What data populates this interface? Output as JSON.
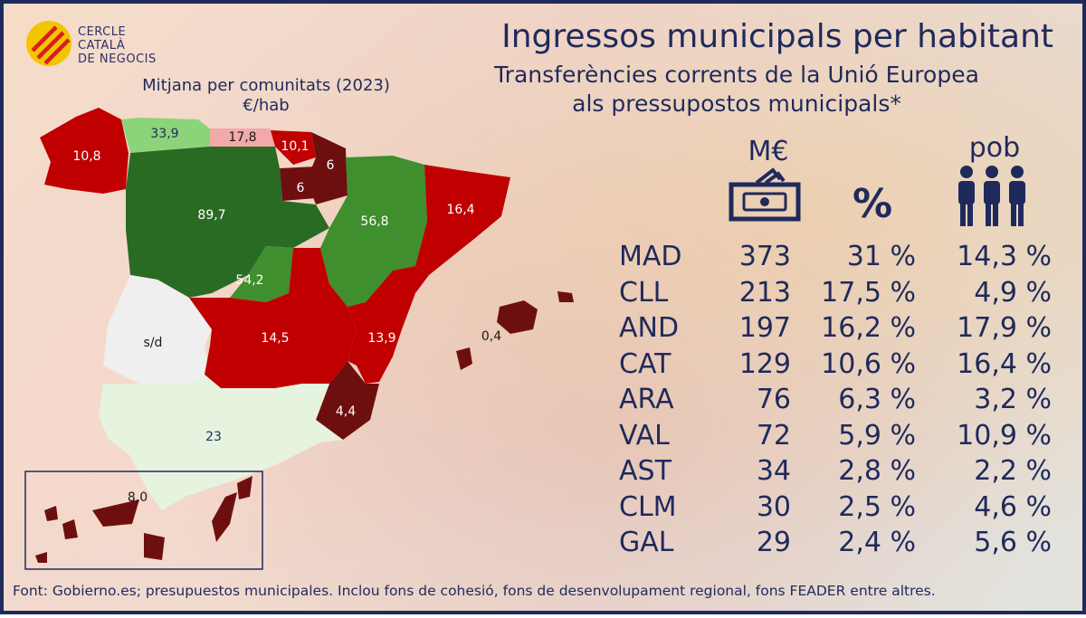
{
  "logo": {
    "line1": "CERCLE",
    "line2": "CATALÀ",
    "line3": "DE NEGOCIS"
  },
  "title": "Ingressos municipals per habitant",
  "subtitle_line1": "Transferències corrents de la Unió Europea",
  "subtitle_line2": "als pressupostos municipals*",
  "map_heading_line1": "Mitjana per comunitats (2023)",
  "map_heading_line2": "€/hab",
  "column_headers": {
    "millions": "M€",
    "percent": "%",
    "population": "pob"
  },
  "icons": [
    "banknote-icon",
    "percent-icon",
    "people-icon"
  ],
  "colors": {
    "dark_green": "#2a6b24",
    "mid_green": "#3f8f2e",
    "light_green": "#8cd47a",
    "pale_green": "#e6f3df",
    "pink": "#f2a9a9",
    "red": "#c00000",
    "dark_red": "#6e0f0f",
    "no_data": "#efefef",
    "text_navy": "#1f2a5c"
  },
  "chart_data": [
    {
      "type": "map",
      "unit": "€/hab",
      "regions": [
        {
          "region": "GAL",
          "value": "10,8"
        },
        {
          "region": "AST",
          "value": "33,9"
        },
        {
          "region": "CAN",
          "value": "17,8"
        },
        {
          "region": "PVA",
          "value": "10,1"
        },
        {
          "region": "NAV",
          "value": "6"
        },
        {
          "region": "RIO",
          "value": "6"
        },
        {
          "region": "CLL",
          "value": "89,7"
        },
        {
          "region": "ARA",
          "value": "56,8"
        },
        {
          "region": "CAT",
          "value": "16,4"
        },
        {
          "region": "MAD",
          "value": "54,2"
        },
        {
          "region": "EXT",
          "value": "s/d"
        },
        {
          "region": "CLM",
          "value": "14,5"
        },
        {
          "region": "VAL",
          "value": "13,9"
        },
        {
          "region": "BAL",
          "value": "0,4"
        },
        {
          "region": "MUR",
          "value": "4,4"
        },
        {
          "region": "AND",
          "value": "23"
        },
        {
          "region": "CAN-IS",
          "value": "8,0"
        }
      ]
    },
    {
      "type": "table",
      "columns": [
        "",
        "M€",
        "%",
        "pob"
      ],
      "rows": [
        {
          "code": "MAD",
          "meur": "373",
          "pct": "31 %",
          "pob": "14,3 %"
        },
        {
          "code": "CLL",
          "meur": "213",
          "pct": "17,5 %",
          "pob": "4,9 %"
        },
        {
          "code": "AND",
          "meur": "197",
          "pct": "16,2 %",
          "pob": "17,9 %"
        },
        {
          "code": "CAT",
          "meur": "129",
          "pct": "10,6 %",
          "pob": "16,4 %"
        },
        {
          "code": "ARA",
          "meur": "76",
          "pct": "6,3 %",
          "pob": "3,2 %"
        },
        {
          "code": "VAL",
          "meur": "72",
          "pct": "5,9 %",
          "pob": "10,9 %"
        },
        {
          "code": "AST",
          "meur": "34",
          "pct": "2,8 %",
          "pob": "2,2 %"
        },
        {
          "code": "CLM",
          "meur": "30",
          "pct": "2,5 %",
          "pob": "4,6 %"
        },
        {
          "code": "GAL",
          "meur": "29",
          "pct": "2,4 %",
          "pob": "5,6 %"
        }
      ]
    }
  ],
  "footer": "Font: Gobierno.es; presupuestos municipales. Inclou fons de cohesió, fons de desenvolupament regional, fons FEADER entre altres."
}
